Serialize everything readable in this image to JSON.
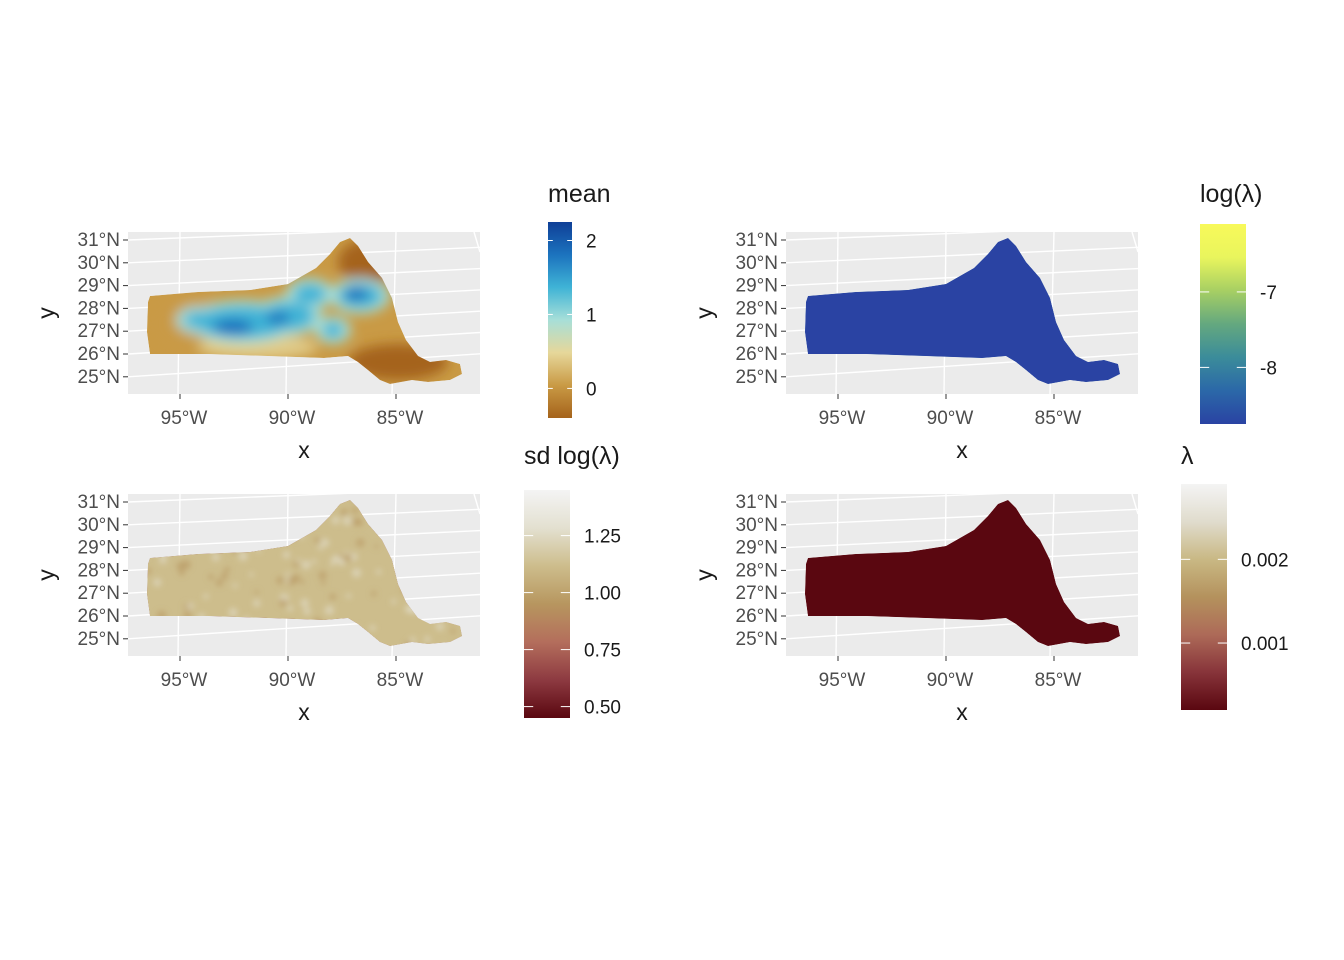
{
  "panels": [
    {
      "id": "mean",
      "legend_title": "mean",
      "legend_ticks": [
        {
          "label": "2",
          "value": 2
        },
        {
          "label": "1",
          "value": 1
        },
        {
          "label": "0",
          "value": 0
        }
      ],
      "legend_range": [
        -0.4,
        2.25
      ],
      "colors": [
        "#a5631b",
        "#c99a45",
        "#e6d79a",
        "#a7dfd8",
        "#3fb3d6",
        "#1c73be",
        "#0f3f97"
      ],
      "palette_low": "#a5631b",
      "palette_high": "#0f3f97",
      "x_label": "x",
      "y_label": "y"
    },
    {
      "id": "loglambda",
      "legend_title": "log(λ)",
      "legend_ticks": [
        {
          "label": "-7",
          "value": -7
        },
        {
          "label": "-8",
          "value": -8
        }
      ],
      "legend_range": [
        -8.75,
        -6.1
      ],
      "colors": [
        "#2a43a3",
        "#2b68a8",
        "#3b8c9a",
        "#64a87f",
        "#a7cf63",
        "#e9f55d",
        "#f8f95a"
      ],
      "palette_low": "#2a43a3",
      "palette_high": "#f8f95a",
      "x_label": "x",
      "y_label": "y"
    },
    {
      "id": "sdloglambda",
      "legend_title": "sd log(λ)",
      "legend_ticks": [
        {
          "label": "1.25",
          "value": 1.25
        },
        {
          "label": "1.00",
          "value": 1.0
        },
        {
          "label": "0.75",
          "value": 0.75
        },
        {
          "label": "0.50",
          "value": 0.5
        }
      ],
      "legend_range": [
        0.45,
        1.45
      ],
      "colors": [
        "#5a0710",
        "#8d3a41",
        "#b46e5c",
        "#b7965f",
        "#cdbd8c",
        "#e3e0d0",
        "#f4f4f4"
      ],
      "palette_low": "#5a0710",
      "palette_high": "#f4f4f4",
      "x_label": "x",
      "y_label": "y"
    },
    {
      "id": "lambda",
      "legend_title": "λ",
      "legend_ticks": [
        {
          "label": "0.002",
          "value": 0.002
        },
        {
          "label": "0.001",
          "value": 0.001
        }
      ],
      "legend_range": [
        0.0002,
        0.0029
      ],
      "colors": [
        "#5a0710",
        "#87343a",
        "#ad6a58",
        "#b4925d",
        "#c9b884",
        "#e0dccd",
        "#f4f4f4"
      ],
      "palette_low": "#5a0710",
      "palette_high": "#f4f4f4",
      "x_label": "x",
      "y_label": "y"
    }
  ],
  "map_axes": {
    "lon_ticks": [
      "95°W",
      "90°W",
      "85°W"
    ],
    "lat_ticks": [
      "31°N",
      "30°N",
      "29°N",
      "28°N",
      "27°N",
      "26°N",
      "25°N"
    ]
  }
}
